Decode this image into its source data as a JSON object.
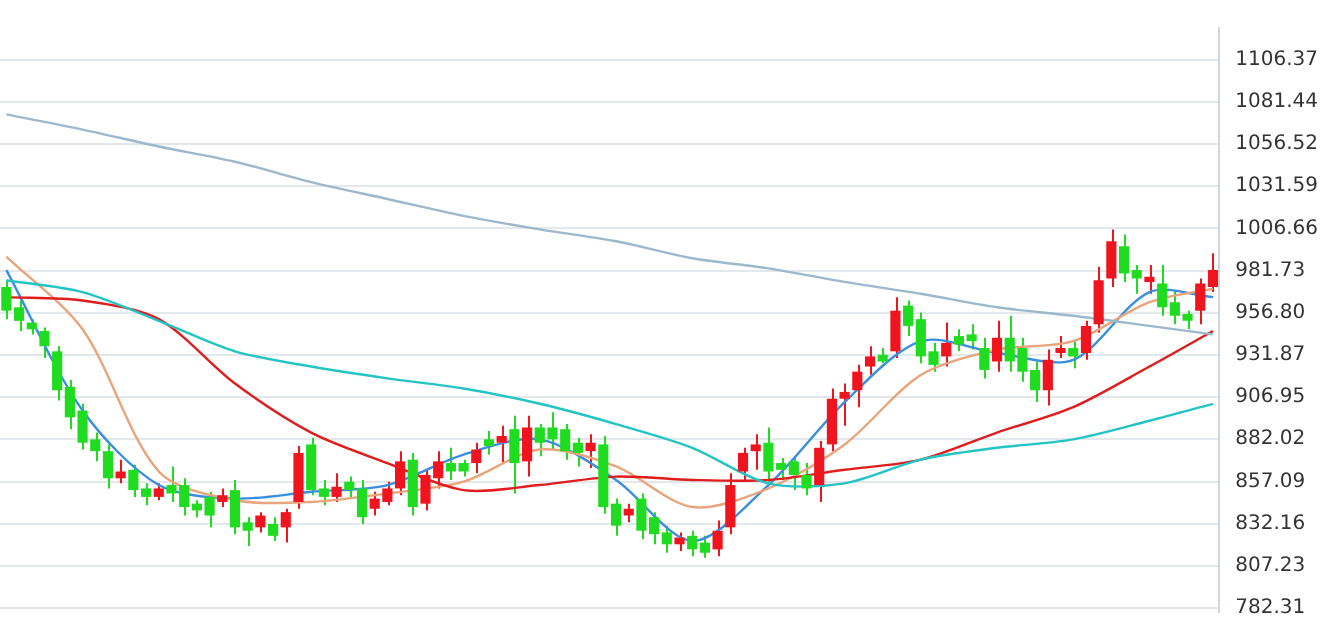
{
  "chart_data": {
    "type": "candlestick",
    "categories": [
      null,
      null,
      null,
      null,
      null,
      null,
      null,
      null,
      null,
      null,
      null,
      null,
      null,
      null,
      null,
      null,
      null,
      null,
      null,
      null,
      null,
      null,
      null,
      null,
      null,
      null,
      null,
      null,
      null,
      null,
      null,
      null,
      null,
      null,
      null,
      null,
      null,
      null,
      null,
      null,
      null,
      null,
      null,
      null,
      null,
      null,
      null,
      null,
      null,
      null,
      null,
      null,
      null,
      null,
      null,
      null,
      null,
      null,
      null,
      null,
      null,
      null,
      null,
      null,
      null,
      null,
      null,
      null,
      null,
      null,
      null,
      null,
      null,
      null,
      null,
      null,
      null,
      null,
      null,
      null,
      null,
      null,
      null,
      null,
      null,
      null,
      null,
      null,
      null,
      null,
      null,
      null,
      null,
      null,
      null,
      null
    ],
    "ohlc": [
      [
        972,
        976,
        953,
        958
      ],
      [
        960,
        964,
        946,
        952
      ],
      [
        951,
        953,
        944,
        947
      ],
      [
        946,
        948,
        930,
        937
      ],
      [
        934,
        937,
        905,
        911
      ],
      [
        913,
        917,
        888,
        895
      ],
      [
        899,
        903,
        876,
        880
      ],
      [
        882,
        886,
        869,
        875
      ],
      [
        875,
        879,
        853,
        859
      ],
      [
        859,
        870,
        856,
        863
      ],
      [
        864,
        867,
        848,
        852
      ],
      [
        853,
        856,
        843,
        848
      ],
      [
        848,
        856,
        846,
        853
      ],
      [
        855,
        866,
        845,
        850
      ],
      [
        855,
        859,
        837,
        842
      ],
      [
        844,
        846,
        836,
        840
      ],
      [
        848,
        851,
        830,
        837
      ],
      [
        845,
        853,
        842,
        849
      ],
      [
        852,
        858,
        826,
        830
      ],
      [
        833,
        836,
        819,
        828
      ],
      [
        830,
        839,
        827,
        837
      ],
      [
        832,
        836,
        822,
        825
      ],
      [
        830,
        841,
        821,
        839
      ],
      [
        845,
        878,
        841,
        874
      ],
      [
        879,
        883,
        849,
        852
      ],
      [
        853,
        858,
        843,
        848
      ],
      [
        848,
        862,
        845,
        854
      ],
      [
        857,
        860,
        848,
        852
      ],
      [
        853,
        858,
        832,
        836
      ],
      [
        841,
        851,
        837,
        847
      ],
      [
        845,
        857,
        843,
        853
      ],
      [
        853,
        875,
        849,
        869
      ],
      [
        870,
        874,
        837,
        842
      ],
      [
        844,
        864,
        840,
        861
      ],
      [
        859,
        875,
        853,
        869
      ],
      [
        868,
        877,
        858,
        863
      ],
      [
        868,
        870,
        860,
        863
      ],
      [
        868,
        880,
        862,
        876
      ],
      [
        882,
        887,
        873,
        878
      ],
      [
        880,
        890,
        868,
        884
      ],
      [
        888,
        896,
        850,
        868
      ],
      [
        869,
        896,
        860,
        889
      ],
      [
        889,
        891,
        872,
        880
      ],
      [
        889,
        898,
        876,
        882
      ],
      [
        888,
        891,
        870,
        875
      ],
      [
        880,
        883,
        866,
        874
      ],
      [
        875,
        885,
        865,
        880
      ],
      [
        879,
        884,
        838,
        842
      ],
      [
        844,
        847,
        825,
        831
      ],
      [
        837,
        844,
        833,
        841
      ],
      [
        847,
        850,
        823,
        828
      ],
      [
        836,
        839,
        820,
        826
      ],
      [
        827,
        831,
        815,
        820
      ],
      [
        820,
        827,
        816,
        824
      ],
      [
        825,
        828,
        813,
        817
      ],
      [
        821,
        825,
        812,
        815
      ],
      [
        817,
        834,
        813,
        828
      ],
      [
        830,
        862,
        826,
        855
      ],
      [
        863,
        877,
        857,
        874
      ],
      [
        875,
        885,
        864,
        879
      ],
      [
        880,
        889,
        857,
        863
      ],
      [
        868,
        871,
        858,
        864
      ],
      [
        869,
        872,
        852,
        861
      ],
      [
        861,
        868,
        849,
        853
      ],
      [
        855,
        881,
        845,
        877
      ],
      [
        879,
        912,
        875,
        906
      ],
      [
        906,
        915,
        890,
        910
      ],
      [
        911,
        926,
        901,
        922
      ],
      [
        925,
        937,
        920,
        931
      ],
      [
        932,
        936,
        927,
        928
      ],
      [
        934,
        966,
        930,
        958
      ],
      [
        961,
        964,
        943,
        949
      ],
      [
        953,
        957,
        927,
        931
      ],
      [
        934,
        939,
        922,
        926
      ],
      [
        931,
        951,
        925,
        939
      ],
      [
        943,
        947,
        934,
        938
      ],
      [
        944,
        950,
        935,
        940
      ],
      [
        936,
        942,
        918,
        923
      ],
      [
        928,
        952,
        922,
        942
      ],
      [
        942,
        955,
        922,
        928
      ],
      [
        936,
        942,
        916,
        922
      ],
      [
        923,
        928,
        904,
        911
      ],
      [
        911,
        935,
        902,
        929
      ],
      [
        933,
        943,
        930,
        936
      ],
      [
        936,
        940,
        924,
        931
      ],
      [
        933,
        952,
        929,
        949
      ],
      [
        950,
        984,
        945,
        976
      ],
      [
        977,
        1006,
        972,
        999
      ],
      [
        996,
        1003,
        975,
        980
      ],
      [
        982,
        985,
        968,
        977
      ],
      [
        975,
        985,
        968,
        978
      ],
      [
        974,
        985,
        955,
        960
      ],
      [
        963,
        970,
        950,
        955
      ],
      [
        956,
        958,
        947,
        952
      ],
      [
        958,
        977,
        950,
        974
      ],
      [
        972,
        992,
        969,
        982
      ]
    ],
    "colors": [
      "#20dc20",
      "#20dc20",
      "#20dc20",
      "#20dc20",
      "#20dc20",
      "#20dc20",
      "#20dc20",
      "#20dc20",
      "#20dc20",
      "#f0141e",
      "#20dc20",
      "#20dc20",
      "#f0141e",
      "#20dc20",
      "#20dc20",
      "#20dc20",
      "#20dc20",
      "#f0141e",
      "#20dc20",
      "#20dc20",
      "#f0141e",
      "#20dc20",
      "#f0141e",
      "#f0141e",
      "#20dc20",
      "#20dc20",
      "#f0141e",
      "#20dc20",
      "#20dc20",
      "#f0141e",
      "#f0141e",
      "#f0141e",
      "#20dc20",
      "#f0141e",
      "#f0141e",
      "#20dc20",
      "#20dc20",
      "#f0141e",
      "#20dc20",
      "#f0141e",
      "#20dc20",
      "#f0141e",
      "#20dc20",
      "#20dc20",
      "#20dc20",
      "#20dc20",
      "#f0141e",
      "#20dc20",
      "#20dc20",
      "#f0141e",
      "#20dc20",
      "#20dc20",
      "#20dc20",
      "#f0141e",
      "#20dc20",
      "#20dc20",
      "#f0141e",
      "#f0141e",
      "#f0141e",
      "#f0141e",
      "#20dc20",
      "#20dc20",
      "#20dc20",
      "#20dc20",
      "#f0141e",
      "#f0141e",
      "#f0141e",
      "#f0141e",
      "#f0141e",
      "#20dc20",
      "#f0141e",
      "#20dc20",
      "#20dc20",
      "#20dc20",
      "#f0141e",
      "#20dc20",
      "#20dc20",
      "#20dc20",
      "#f0141e",
      "#20dc20",
      "#20dc20",
      "#20dc20",
      "#f0141e",
      "#f0141e",
      "#20dc20",
      "#f0141e",
      "#f0141e",
      "#f0141e",
      "#20dc20",
      "#20dc20",
      "#f0141e",
      "#20dc20",
      "#20dc20",
      "#20dc20",
      "#f0141e",
      "#f0141e"
    ],
    "series": [
      {
        "type": "line",
        "color": "#9bb8cc",
        "values": [
          1074,
          null,
          null,
          null,
          null,
          null,
          1065,
          null,
          null,
          null,
          null,
          null,
          1055,
          null,
          null,
          null,
          null,
          null,
          1046,
          null,
          null,
          null,
          null,
          null,
          1034,
          null,
          null,
          null,
          null,
          null,
          1024,
          null,
          null,
          null,
          null,
          null,
          1014,
          null,
          null,
          null,
          null,
          null,
          1006,
          null,
          null,
          null,
          null,
          null,
          999,
          null,
          null,
          null,
          null,
          null,
          989,
          null,
          null,
          null,
          null,
          null,
          983,
          null,
          null,
          null,
          null,
          null,
          975,
          null,
          null,
          null,
          null,
          null,
          968,
          null,
          null,
          null,
          null,
          null,
          960,
          null,
          null,
          null,
          null,
          null,
          955,
          null,
          null,
          null,
          null,
          null,
          949,
          null,
          null,
          null,
          null,
          944
        ]
      },
      {
        "type": "line",
        "color": "#22c4c4",
        "values": [
          976,
          null,
          null,
          null,
          null,
          null,
          969,
          null,
          null,
          null,
          null,
          null,
          952,
          null,
          null,
          null,
          null,
          null,
          934,
          null,
          null,
          null,
          null,
          null,
          925,
          null,
          null,
          null,
          null,
          null,
          918,
          null,
          null,
          null,
          null,
          null,
          912,
          null,
          null,
          null,
          null,
          null,
          903,
          null,
          null,
          null,
          null,
          null,
          891,
          null,
          null,
          null,
          null,
          null,
          877,
          null,
          null,
          null,
          null,
          null,
          856,
          null,
          null,
          null,
          null,
          null,
          856,
          null,
          null,
          null,
          null,
          null,
          870,
          null,
          null,
          null,
          null,
          null,
          877,
          null,
          null,
          null,
          null,
          null,
          882,
          null,
          null,
          null,
          null,
          null,
          893,
          null,
          null,
          null,
          null,
          903
        ]
      },
      {
        "type": "line",
        "color": "#e01c1c",
        "values": [
          966,
          null,
          null,
          null,
          null,
          null,
          964,
          null,
          null,
          null,
          null,
          null,
          953,
          null,
          null,
          null,
          null,
          null,
          915,
          null,
          null,
          null,
          null,
          null,
          886,
          null,
          null,
          null,
          null,
          null,
          868,
          null,
          null,
          null,
          null,
          null,
          852,
          null,
          null,
          null,
          null,
          null,
          855,
          null,
          null,
          null,
          null,
          null,
          860,
          null,
          null,
          null,
          null,
          null,
          858,
          null,
          null,
          null,
          null,
          null,
          858,
          null,
          null,
          null,
          null,
          null,
          864,
          null,
          null,
          null,
          null,
          null,
          870,
          null,
          null,
          null,
          null,
          null,
          886,
          null,
          null,
          null,
          null,
          null,
          901,
          null,
          null,
          null,
          null,
          null,
          925,
          null,
          null,
          null,
          null,
          946
        ]
      },
      {
        "type": "line",
        "color": "#e8a47a",
        "values": [
          990,
          null,
          null,
          null,
          null,
          null,
          947,
          null,
          null,
          null,
          null,
          null,
          863,
          null,
          null,
          null,
          null,
          null,
          846,
          null,
          null,
          null,
          null,
          null,
          845,
          null,
          null,
          null,
          null,
          null,
          850,
          null,
          null,
          null,
          null,
          null,
          857,
          null,
          null,
          null,
          null,
          null,
          876,
          null,
          null,
          null,
          null,
          null,
          866,
          null,
          null,
          null,
          null,
          null,
          842,
          null,
          null,
          null,
          null,
          null,
          853,
          null,
          null,
          null,
          null,
          null,
          879,
          null,
          null,
          null,
          null,
          null,
          920,
          null,
          null,
          null,
          null,
          null,
          935,
          null,
          null,
          null,
          null,
          null,
          940,
          null,
          null,
          null,
          null,
          null,
          963,
          null,
          null,
          null,
          null,
          971
        ]
      },
      {
        "type": "line",
        "color": "#3a8ee0",
        "values": [
          982,
          null,
          null,
          null,
          null,
          null,
          899,
          null,
          null,
          null,
          null,
          null,
          855,
          null,
          null,
          null,
          null,
          null,
          847,
          null,
          null,
          null,
          null,
          null,
          851,
          null,
          null,
          null,
          null,
          null,
          855,
          null,
          null,
          null,
          null,
          null,
          873,
          null,
          null,
          null,
          null,
          null,
          882,
          null,
          null,
          null,
          null,
          null,
          858,
          null,
          null,
          null,
          null,
          null,
          822,
          null,
          null,
          null,
          null,
          null,
          855,
          null,
          null,
          null,
          null,
          null,
          904,
          null,
          null,
          null,
          null,
          null,
          940,
          null,
          null,
          null,
          null,
          null,
          933,
          null,
          null,
          null,
          null,
          null,
          929,
          null,
          null,
          null,
          null,
          null,
          969,
          null,
          null,
          null,
          null,
          966
        ]
      }
    ],
    "ylim": [
      780,
      1125
    ],
    "yticks": [
      1106.37,
      1081.44,
      1056.52,
      1031.59,
      1006.66,
      981.73,
      {
        "value": 956.8,
        "label": "956.80"
      },
      931.87,
      906.95,
      882.02,
      857.09,
      832.16,
      807.23,
      782.31
    ],
    "grid": "y",
    "tick_labels": "y"
  }
}
